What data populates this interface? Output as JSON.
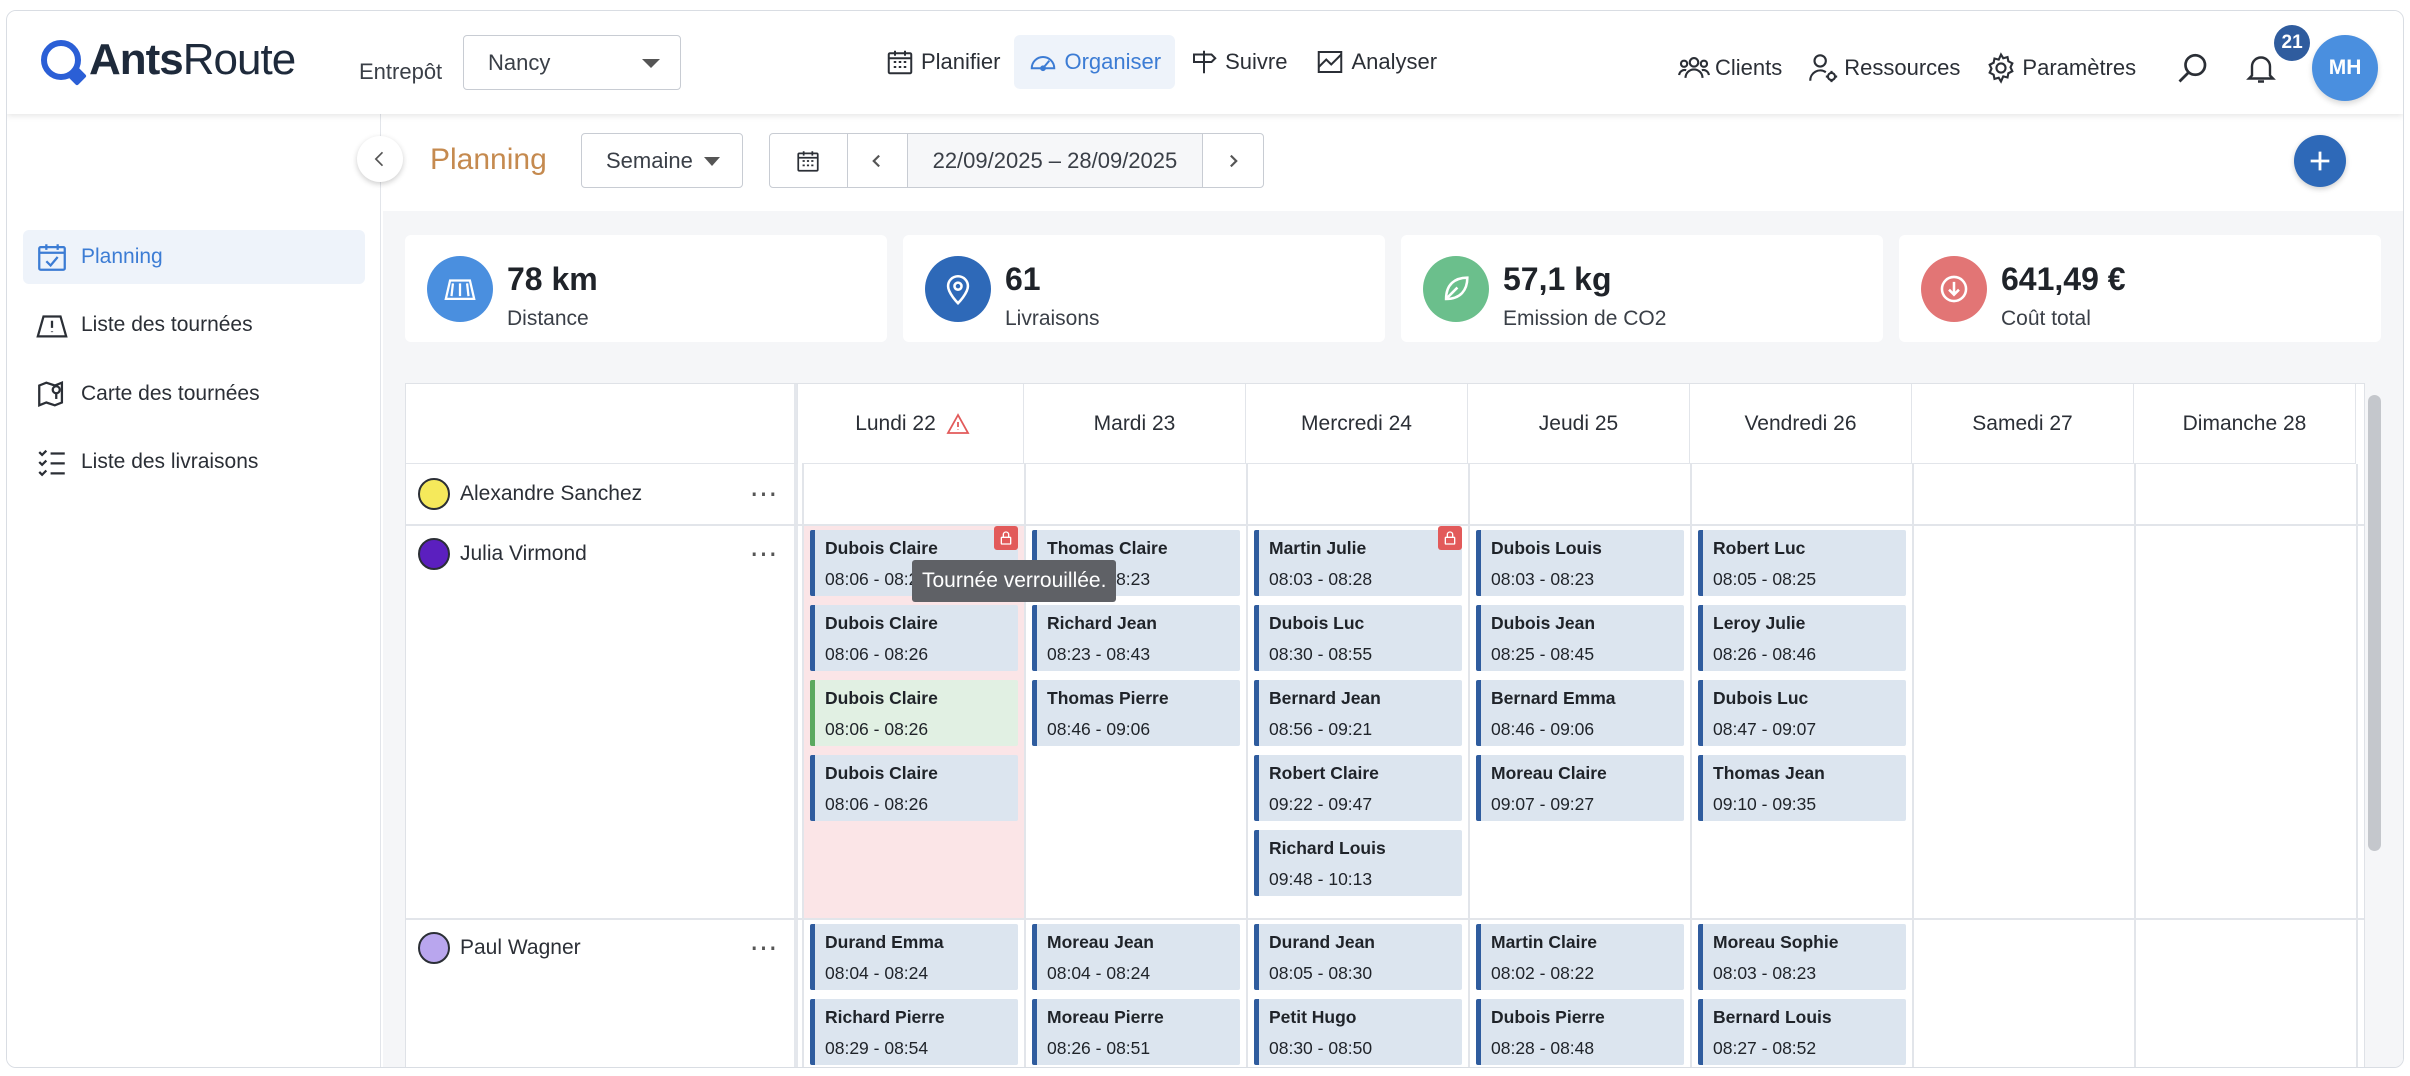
{
  "header": {
    "logo_bold": "Ants",
    "logo_light": "Route",
    "entrepot_label": "Entrepôt",
    "entrepot_value": "Nancy",
    "nav": [
      {
        "label": "Planifier",
        "icon": "calendar-icon"
      },
      {
        "label": "Organiser",
        "icon": "gauge-icon"
      },
      {
        "label": "Suivre",
        "icon": "signpost-icon"
      },
      {
        "label": "Analyser",
        "icon": "chart-icon"
      }
    ],
    "right_nav": [
      {
        "label": "Clients",
        "icon": "users-icon"
      },
      {
        "label": "Ressources",
        "icon": "user-gear-icon"
      },
      {
        "label": "Paramètres",
        "icon": "gear-icon"
      }
    ],
    "notification_count": "21",
    "avatar_initials": "MH"
  },
  "sidebar": {
    "items": [
      {
        "label": "Planning",
        "icon": "calendar-check-icon"
      },
      {
        "label": "Liste des tournées",
        "icon": "map-alert-icon"
      },
      {
        "label": "Carte des tournées",
        "icon": "map-pin-icon"
      },
      {
        "label": "Liste des livraisons",
        "icon": "list-check-icon"
      }
    ]
  },
  "toolbar": {
    "title": "Planning",
    "period": "Semaine",
    "date_range": "22/09/2025 – 28/09/2025"
  },
  "stats": [
    {
      "value": "78 km",
      "label": "Distance",
      "icon": "map-icon",
      "color": "#4a8fdf"
    },
    {
      "value": "61",
      "label": "Livraisons",
      "icon": "pin-icon",
      "color": "#2e69b8"
    },
    {
      "value": "57,1 kg",
      "label": "Emission de CO2",
      "icon": "leaf-icon",
      "color": "#6bbf8c"
    },
    {
      "value": "641,49 €",
      "label": "Coût total",
      "icon": "download-coin-icon",
      "color": "#e27575"
    }
  ],
  "days": [
    "Lundi 22",
    "Mardi 23",
    "Mercredi 24",
    "Jeudi 25",
    "Vendredi 26",
    "Samedi 27",
    "Dimanche 28"
  ],
  "drivers": [
    {
      "name": "Alexandre Sanchez",
      "color": "#f5e95b"
    },
    {
      "name": "Julia Virmond",
      "color": "#5b1fbf"
    },
    {
      "name": "Paul Wagner",
      "color": "#b9a6ee"
    }
  ],
  "tooltip": "Tournée verrouillée.",
  "rows": [
    {
      "days": [
        [],
        [],
        [],
        [],
        [],
        [],
        []
      ]
    },
    {
      "days": [
        [
          {
            "name": "Dubois Claire",
            "time": "08:06 - 08:26"
          },
          {
            "name": "Dubois Claire",
            "time": "08:06 - 08:26"
          },
          {
            "name": "Dubois Claire",
            "time": "08:06 - 08:26",
            "green": true
          },
          {
            "name": "Dubois Claire",
            "time": "08:06 - 08:26"
          }
        ],
        [
          {
            "name": "Thomas Claire",
            "time": "08:03 - 08:23"
          },
          {
            "name": "Richard Jean",
            "time": "08:23 - 08:43"
          },
          {
            "name": "Thomas Pierre",
            "time": "08:46 - 09:06"
          }
        ],
        [
          {
            "name": "Martin Julie",
            "time": "08:03 - 08:28"
          },
          {
            "name": "Dubois Luc",
            "time": "08:30 - 08:55"
          },
          {
            "name": "Bernard Jean",
            "time": "08:56 - 09:21"
          },
          {
            "name": "Robert Claire",
            "time": "09:22 - 09:47"
          },
          {
            "name": "Richard Louis",
            "time": "09:48 - 10:13"
          }
        ],
        [
          {
            "name": "Dubois Louis",
            "time": "08:03 - 08:23"
          },
          {
            "name": "Dubois Jean",
            "time": "08:25 - 08:45"
          },
          {
            "name": "Bernard Emma",
            "time": "08:46 - 09:06"
          },
          {
            "name": "Moreau Claire",
            "time": "09:07 - 09:27"
          }
        ],
        [
          {
            "name": "Robert Luc",
            "time": "08:05 - 08:25"
          },
          {
            "name": "Leroy Julie",
            "time": "08:26 - 08:46"
          },
          {
            "name": "Dubois Luc",
            "time": "08:47 - 09:07"
          },
          {
            "name": "Thomas Jean",
            "time": "09:10 - 09:35"
          }
        ],
        [],
        []
      ]
    },
    {
      "days": [
        [
          {
            "name": "Durand Emma",
            "time": "08:04 - 08:24"
          },
          {
            "name": "Richard Pierre",
            "time": "08:29 - 08:54"
          }
        ],
        [
          {
            "name": "Moreau Jean",
            "time": "08:04 - 08:24"
          },
          {
            "name": "Moreau Pierre",
            "time": "08:26 - 08:51"
          }
        ],
        [
          {
            "name": "Durand Jean",
            "time": "08:05 - 08:30"
          },
          {
            "name": "Petit Hugo",
            "time": "08:30 - 08:50"
          }
        ],
        [
          {
            "name": "Martin Claire",
            "time": "08:02 - 08:22"
          },
          {
            "name": "Dubois Pierre",
            "time": "08:28 - 08:48"
          }
        ],
        [
          {
            "name": "Moreau Sophie",
            "time": "08:03 - 08:23"
          },
          {
            "name": "Bernard Louis",
            "time": "08:27 - 08:52"
          }
        ],
        [],
        []
      ]
    }
  ]
}
